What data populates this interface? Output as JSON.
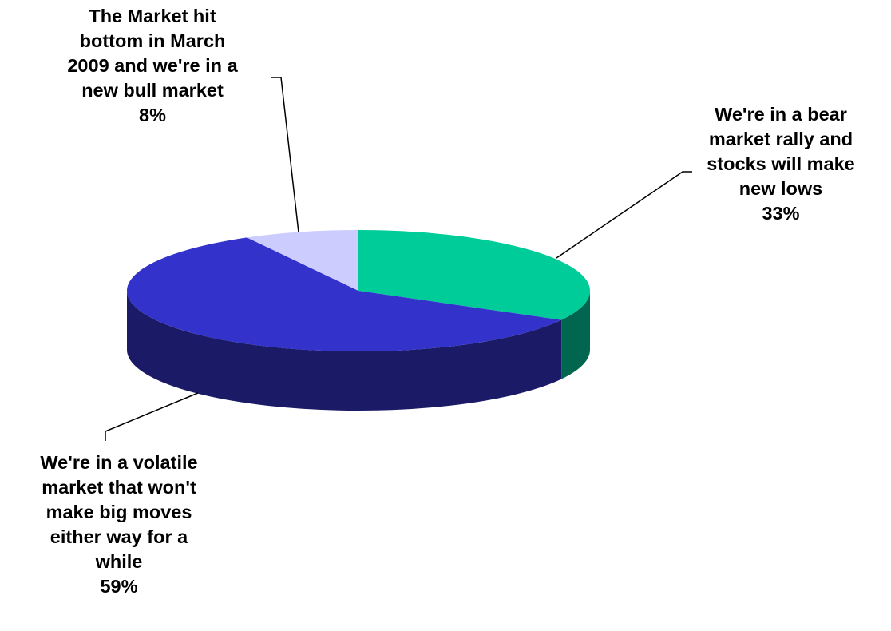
{
  "chart_data": {
    "type": "pie",
    "variant": "3d",
    "legend": "none",
    "slices": [
      {
        "label_lines": [
          "We're in a bear",
          "market rally and",
          "stocks will make",
          "new lows"
        ],
        "value": 33,
        "value_label": "33%",
        "color": "#00CC99",
        "side_color": "#006650"
      },
      {
        "label_lines": [
          "We're in a volatile",
          "market that won't",
          "make big moves",
          "either way for a",
          "while"
        ],
        "value": 59,
        "value_label": "59%",
        "color": "#3333CC",
        "side_color": "#1A1A66"
      },
      {
        "label_lines": [
          "The Market hit",
          "bottom in March",
          "2009 and we're in a",
          "new bull market"
        ],
        "value": 8,
        "value_label": "8%",
        "color": "#CCCCFF",
        "side_color": "#8A8AB0"
      }
    ]
  }
}
